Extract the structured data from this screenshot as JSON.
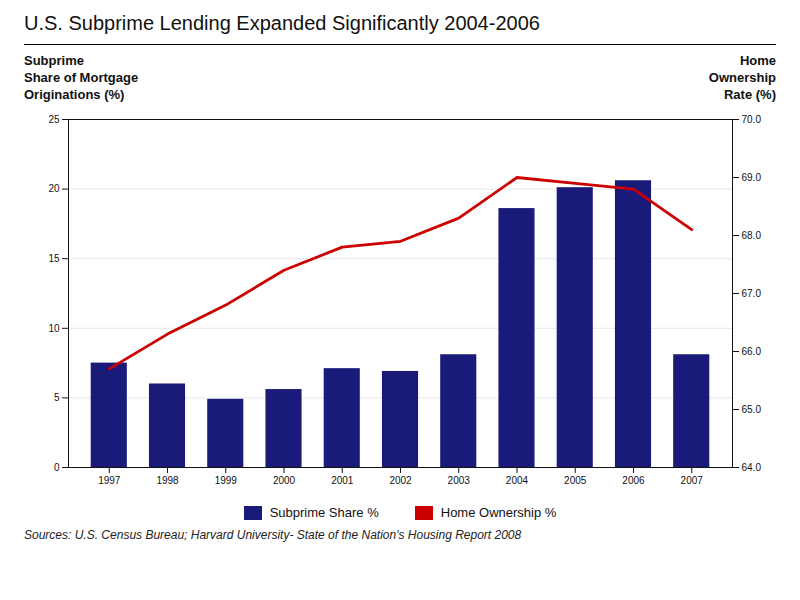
{
  "chart_data": {
    "type": "bar",
    "title": "U.S. Subprime Lending Expanded Significantly 2004-2006",
    "x": [
      1997,
      1998,
      1999,
      2000,
      2001,
      2002,
      2003,
      2004,
      2005,
      2006,
      2007
    ],
    "xlim": [
      1996.3,
      2007.7
    ],
    "xticks": [
      1997,
      1998,
      1999,
      2000,
      2001,
      2002,
      2003,
      2004,
      2005,
      2006,
      2007
    ],
    "ylim": [
      0,
      25
    ],
    "yticks": [
      0,
      5,
      10,
      15,
      20,
      25
    ],
    "y2lim": [
      64,
      70
    ],
    "y2ticks": [
      64,
      65,
      66,
      67,
      68,
      69,
      70
    ],
    "ylabel": "Subprime\nShare of Mortgage\nOriginations (%)",
    "y2label": "Home\nOwnership\nRate (%)",
    "grid": true,
    "legend": "bottom",
    "caption": "Sources:  U.S. Census Bureau; Harvard University- State of the Nation's Housing Report 2008",
    "series": [
      {
        "name": "Subprime Share %",
        "type": "bar",
        "color": "#1a1a7a",
        "values": [
          7.5,
          6.0,
          4.9,
          5.6,
          7.1,
          6.9,
          8.1,
          18.6,
          20.1,
          20.6,
          8.1
        ]
      },
      {
        "name": "Home Ownership %",
        "type": "line",
        "color": "#cc0000",
        "axis": "y2",
        "values": [
          65.7,
          66.3,
          66.8,
          67.4,
          67.8,
          67.9,
          68.3,
          69.0,
          68.9,
          68.8,
          68.1
        ]
      }
    ]
  }
}
